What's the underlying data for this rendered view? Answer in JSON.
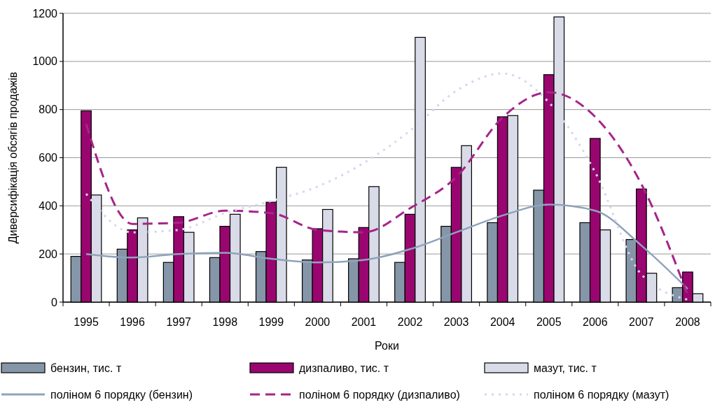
{
  "chart_data": {
    "type": "bar",
    "xlabel": "Роки",
    "ylabel": "Диверсифікація обсягів продажів",
    "categories": [
      "1995",
      "1996",
      "1997",
      "1998",
      "1999",
      "2000",
      "2001",
      "2002",
      "2003",
      "2004",
      "2005",
      "2006",
      "2007",
      "2008"
    ],
    "series": [
      {
        "name": "бензин, тис. т",
        "color": "#8596a8",
        "values": [
          190,
          220,
          165,
          185,
          210,
          175,
          180,
          165,
          315,
          330,
          465,
          330,
          260,
          60
        ]
      },
      {
        "name": "дизпаливо, тис. т",
        "color": "#99066f",
        "values": [
          795,
          300,
          355,
          315,
          415,
          305,
          310,
          365,
          560,
          770,
          945,
          680,
          470,
          125
        ]
      },
      {
        "name": "мазут, тис. т",
        "color": "#d9dbe8",
        "values": [
          445,
          350,
          290,
          365,
          560,
          385,
          480,
          1100,
          650,
          775,
          1185,
          300,
          120,
          35
        ]
      },
      {
        "name": "поліном 6 порядку (бензин)",
        "type": "line",
        "line_style": "solid",
        "color": "#8fa3bb",
        "values": [
          200,
          185,
          200,
          205,
          180,
          165,
          175,
          220,
          290,
          360,
          405,
          380,
          235,
          55
        ]
      },
      {
        "name": "поліном 6 порядку (дизпаливо)",
        "type": "line",
        "line_style": "dashed",
        "color": "#a6248a",
        "values": [
          740,
          325,
          330,
          380,
          370,
          300,
          290,
          390,
          520,
          767,
          872,
          770,
          490,
          30
        ]
      },
      {
        "name": "поліном 6 порядку (мазут)",
        "type": "line",
        "line_style": "dotted",
        "color": "#d3d8ee",
        "values": [
          450,
          290,
          300,
          370,
          420,
          480,
          578,
          712,
          878,
          950,
          830,
          540,
          115,
          10
        ]
      }
    ],
    "ylim": [
      0,
      1200
    ],
    "yticks": [
      0,
      200,
      400,
      600,
      800,
      1000,
      1200
    ],
    "grid": "y",
    "legend": "bottom"
  }
}
